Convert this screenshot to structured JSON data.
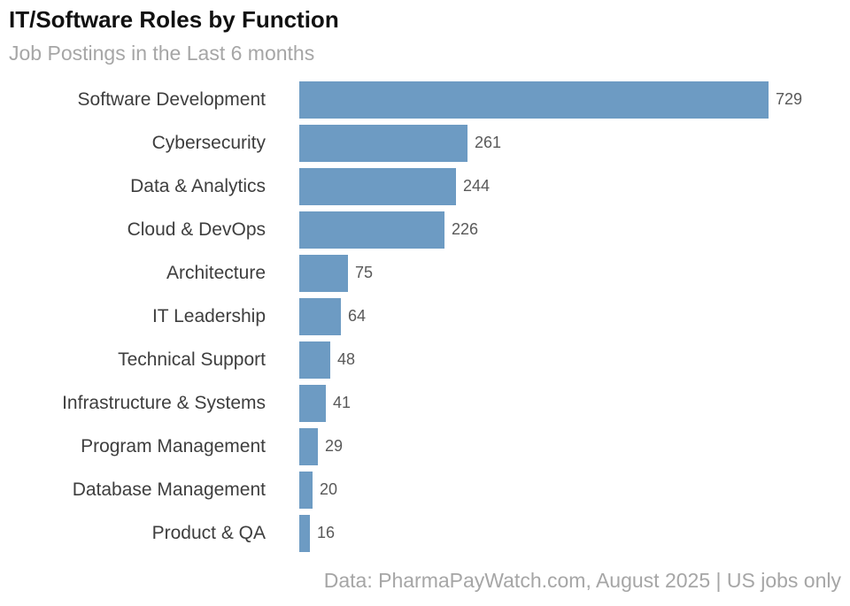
{
  "header": {
    "title": "IT/Software Roles by Function",
    "subtitle": "Job Postings in the Last 6 months"
  },
  "chart_data": {
    "type": "bar",
    "orientation": "horizontal",
    "title": "IT/Software Roles by Function",
    "subtitle": "Job Postings in the Last 6 months",
    "categories": [
      "Software Development",
      "Cybersecurity",
      "Data & Analytics",
      "Cloud & DevOps",
      "Architecture",
      "IT Leadership",
      "Technical Support",
      "Infrastructure & Systems",
      "Program Management",
      "Database Management",
      "Product & QA"
    ],
    "values": [
      729,
      261,
      244,
      226,
      75,
      64,
      48,
      41,
      29,
      20,
      16
    ],
    "value_labels_shown": true,
    "xlabel": "",
    "ylabel": "",
    "xlim": [
      0,
      840
    ],
    "grid": false,
    "legend": false,
    "bar_color": "#6d9bc3"
  },
  "footer": {
    "source_note": "Data: PharmaPayWatch.com, August 2025 | US jobs only"
  },
  "colors": {
    "background": "#ffffff",
    "title": "#111111",
    "subtitle": "#a6a6a6",
    "category_label": "#3e3e3e",
    "value_label": "#595959",
    "bar": "#6d9bc3",
    "footer": "#a6a6a6"
  }
}
